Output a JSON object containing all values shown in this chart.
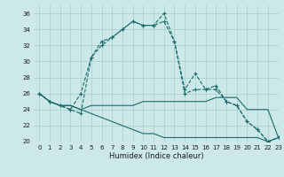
{
  "xlabel": "Humidex (Indice chaleur)",
  "bg_color": "#cce8e8",
  "grid_color": "#aacccc",
  "line_color": "#1a6b6b",
  "xlim": [
    -0.5,
    23
  ],
  "ylim": [
    20,
    37
  ],
  "yticks": [
    20,
    22,
    24,
    26,
    28,
    30,
    32,
    34,
    36
  ],
  "xticks": [
    0,
    1,
    2,
    3,
    4,
    5,
    6,
    7,
    8,
    9,
    10,
    11,
    12,
    13,
    14,
    15,
    16,
    17,
    18,
    19,
    20,
    21,
    22,
    23
  ],
  "series": [
    {
      "y": [
        26.0,
        25.0,
        24.5,
        24.0,
        26.0,
        30.5,
        32.0,
        33.0,
        34.0,
        35.0,
        34.5,
        34.5,
        36.0,
        32.5,
        26.5,
        28.5,
        26.5,
        27.0,
        25.0,
        24.5,
        22.5,
        21.5,
        20.0,
        20.5
      ],
      "linestyle": "--",
      "marker": true
    },
    {
      "y": [
        26.0,
        25.0,
        24.5,
        24.0,
        23.5,
        30.5,
        32.5,
        33.0,
        34.0,
        35.0,
        34.5,
        34.5,
        35.0,
        32.5,
        26.0,
        26.5,
        26.5,
        26.5,
        25.0,
        24.5,
        22.5,
        21.5,
        20.0,
        20.5
      ],
      "linestyle": "--",
      "marker": true
    },
    {
      "y": [
        26.0,
        25.0,
        24.5,
        24.5,
        24.0,
        24.5,
        24.5,
        24.5,
        24.5,
        24.5,
        25.0,
        25.0,
        25.0,
        25.0,
        25.0,
        25.0,
        25.0,
        25.5,
        25.5,
        25.5,
        24.0,
        24.0,
        24.0,
        20.5
      ],
      "linestyle": "-",
      "marker": false
    },
    {
      "y": [
        26.0,
        25.0,
        24.5,
        24.5,
        24.0,
        23.5,
        23.0,
        22.5,
        22.0,
        21.5,
        21.0,
        21.0,
        20.5,
        20.5,
        20.5,
        20.5,
        20.5,
        20.5,
        20.5,
        20.5,
        20.5,
        20.5,
        20.0,
        20.5
      ],
      "linestyle": "-",
      "marker": false
    }
  ]
}
